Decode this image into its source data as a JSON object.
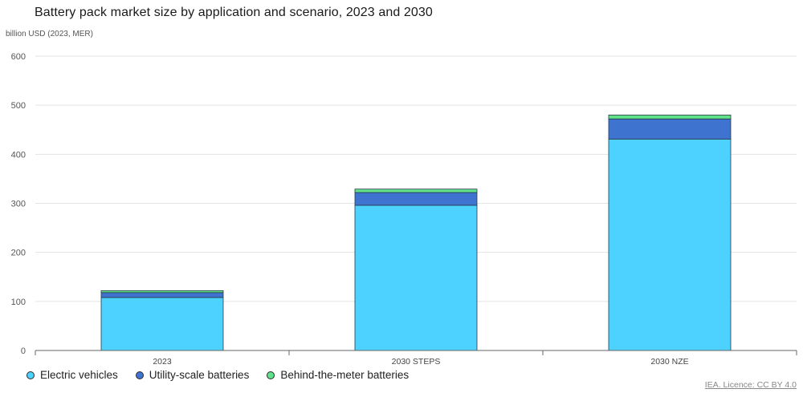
{
  "header": {
    "title": "Battery pack market size by application and scenario, 2023 and 2030",
    "unit_label": "billion USD (2023, MER)"
  },
  "chart_data": {
    "type": "bar",
    "stacked": true,
    "title": "Battery pack market size by application and scenario, 2023 and 2030",
    "ylabel": "billion USD (2023, MER)",
    "xlabel": "",
    "ylim": [
      0,
      600
    ],
    "yticks": [
      0,
      100,
      200,
      300,
      400,
      500,
      600
    ],
    "grid": true,
    "categories": [
      "2023",
      "2030 STEPS",
      "2030 NZE"
    ],
    "series": [
      {
        "name": "Electric vehicles",
        "color": "#4dd2ff",
        "values": [
          108,
          296,
          431
        ]
      },
      {
        "name": "Utility-scale batteries",
        "color": "#3f73d0",
        "values": [
          10,
          26,
          41
        ]
      },
      {
        "name": "Behind-the-meter batteries",
        "color": "#5fe28a",
        "values": [
          4,
          7,
          8
        ]
      }
    ]
  },
  "legend": {
    "items": [
      {
        "label": "Electric vehicles",
        "color": "#4dd2ff"
      },
      {
        "label": "Utility-scale batteries",
        "color": "#3f73d0"
      },
      {
        "label": "Behind-the-meter batteries",
        "color": "#5fe28a"
      }
    ]
  },
  "footer": {
    "credit": "IEA. Licence: CC BY 4.0"
  }
}
